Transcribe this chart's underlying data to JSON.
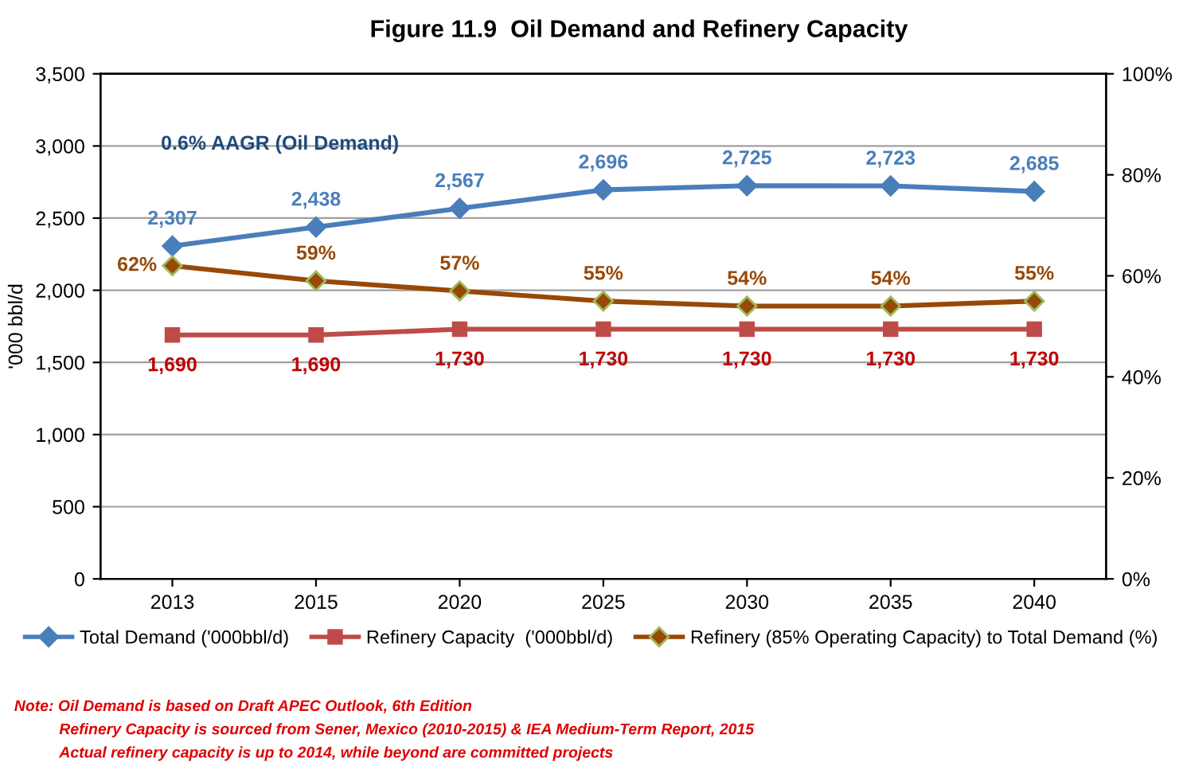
{
  "chart_data": {
    "type": "line",
    "title": "Figure 11.9  Oil Demand and Refinery Capacity",
    "categories": [
      "2013",
      "2015",
      "2020",
      "2025",
      "2030",
      "2035",
      "2040"
    ],
    "ylabel": "'000 bbl/d",
    "ylim": [
      0,
      3500
    ],
    "yticks": [
      {
        "value": 0,
        "label": "0"
      },
      {
        "value": 500,
        "label": "500"
      },
      {
        "value": 1000,
        "label": "1,000"
      },
      {
        "value": 1500,
        "label": "1,500"
      },
      {
        "value": 2000,
        "label": "2,000"
      },
      {
        "value": 2500,
        "label": "2,500"
      },
      {
        "value": 3000,
        "label": "3,000"
      },
      {
        "value": 3500,
        "label": "3,500"
      }
    ],
    "y2lim": [
      0,
      100
    ],
    "y2ticks": [
      {
        "value": 0,
        "label": "0%"
      },
      {
        "value": 20,
        "label": "20%"
      },
      {
        "value": 40,
        "label": "40%"
      },
      {
        "value": 60,
        "label": "60%"
      },
      {
        "value": 80,
        "label": "80%"
      },
      {
        "value": 100,
        "label": "100%"
      }
    ],
    "series": [
      {
        "name": "Total Demand ('000bbl/d)",
        "color": "#4a7ebb",
        "marker": "diamond",
        "values": [
          2307,
          2438,
          2567,
          2696,
          2725,
          2723,
          2685
        ],
        "value_labels": [
          "2,307",
          "2,438",
          "2,567",
          "2,696",
          "2,725",
          "2,723",
          "2,685"
        ]
      },
      {
        "name": "Refinery Capacity  ('000bbl/d)",
        "color": "#be4b48",
        "marker": "square",
        "values": [
          1690,
          1690,
          1730,
          1730,
          1730,
          1730,
          1730
        ],
        "value_labels": [
          "1,690",
          "1,690",
          "1,730",
          "1,730",
          "1,730",
          "1,730",
          "1,730"
        ]
      },
      {
        "name": "Refinery (85% Operating Capacity) to Total Demand (%)",
        "color": "#984807",
        "marker": "diamond",
        "axis": "y2",
        "values": [
          62,
          59,
          57,
          55,
          54,
          54,
          55
        ],
        "value_labels": [
          "62%",
          "59%",
          "57%",
          "55%",
          "54%",
          "54%",
          "55%"
        ]
      }
    ],
    "grid": "y",
    "legend": "bottom",
    "annotations": [
      "0.6% AAGR (Oil Demand)",
      "Note: Oil Demand is based on Draft APEC Outlook, 6th Edition",
      "Refinery Capacity is sourced from Sener, Mexico (2010-2015) & IEA Medium-Term Report, 2015",
      "Actual refinery capacity is up to 2014, while beyond are committed projects"
    ]
  }
}
